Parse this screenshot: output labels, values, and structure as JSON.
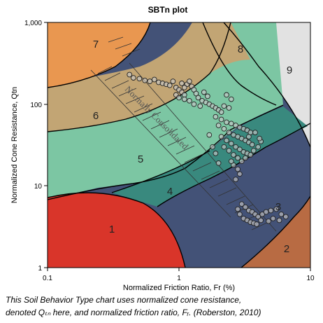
{
  "chart_data": {
    "type": "scatter",
    "title": "SBTn plot",
    "xlabel": "Normalized Friction Ratio, Fr (%)",
    "ylabel": "Normalized Cone Resistance, Qtn",
    "x_scale": "log",
    "y_scale": "log",
    "xlim": [
      0.1,
      10
    ],
    "ylim": [
      1,
      1000
    ],
    "x_ticks": [
      "0.1",
      "1",
      "10"
    ],
    "y_ticks": [
      "1,000",
      "100",
      "10",
      "1"
    ],
    "zone_labels": [
      "1",
      "2",
      "3",
      "4",
      "5",
      "6",
      "7",
      "8",
      "9"
    ],
    "zone_colors": {
      "1": "#d9352a",
      "2": "#b86b43",
      "3": "#435277",
      "4": "#39897e",
      "5": "#7cc6a3",
      "6": "#c2a574",
      "7": "#e99750",
      "8": "#939393",
      "9": "#e2e2e2"
    },
    "annotation": "Normally Consolidated",
    "series": [
      {
        "points": [
          [
            0.42,
            230
          ],
          [
            0.45,
            210
          ],
          [
            0.5,
            205
          ],
          [
            0.55,
            195
          ],
          [
            0.6,
            190
          ],
          [
            0.65,
            200
          ],
          [
            0.7,
            185
          ],
          [
            0.75,
            180
          ],
          [
            0.8,
            175
          ],
          [
            0.85,
            170
          ],
          [
            0.9,
            190
          ],
          [
            0.95,
            160
          ],
          [
            1.0,
            150
          ],
          [
            1.05,
            140
          ],
          [
            1.1,
            130
          ],
          [
            0.95,
            130
          ],
          [
            1.0,
            120
          ],
          [
            1.1,
            115
          ],
          [
            1.2,
            110
          ],
          [
            1.15,
            175
          ],
          [
            1.25,
            165
          ],
          [
            1.3,
            150
          ],
          [
            1.35,
            135
          ],
          [
            1.1,
            160
          ],
          [
            1.05,
            180
          ],
          [
            1.2,
            190
          ],
          [
            1.4,
            120
          ],
          [
            1.5,
            110
          ],
          [
            1.6,
            105
          ],
          [
            1.7,
            100
          ],
          [
            1.8,
            95
          ],
          [
            1.9,
            90
          ],
          [
            2.0,
            85
          ],
          [
            2.1,
            80
          ],
          [
            1.3,
            100
          ],
          [
            1.45,
            95
          ],
          [
            1.55,
            140
          ],
          [
            1.65,
            125
          ],
          [
            2.3,
            130
          ],
          [
            2.5,
            115
          ],
          [
            2.2,
            95
          ],
          [
            2.4,
            90
          ],
          [
            1.9,
            70
          ],
          [
            2.1,
            65
          ],
          [
            2.3,
            60
          ],
          [
            2.5,
            58
          ],
          [
            2.7,
            55
          ],
          [
            2.9,
            52
          ],
          [
            3.1,
            50
          ],
          [
            3.3,
            48
          ],
          [
            3.5,
            45
          ],
          [
            2.0,
            55
          ],
          [
            2.2,
            50
          ],
          [
            2.4,
            45
          ],
          [
            2.6,
            42
          ],
          [
            2.8,
            40
          ],
          [
            3.0,
            38
          ],
          [
            3.2,
            36
          ],
          [
            3.4,
            34
          ],
          [
            3.6,
            32
          ],
          [
            2.1,
            40
          ],
          [
            2.3,
            36
          ],
          [
            2.5,
            33
          ],
          [
            2.7,
            30
          ],
          [
            2.9,
            28
          ],
          [
            3.1,
            26
          ],
          [
            3.3,
            25
          ],
          [
            3.5,
            24
          ],
          [
            3.7,
            27
          ],
          [
            4.0,
            30
          ],
          [
            4.2,
            35
          ],
          [
            2.2,
            30
          ],
          [
            2.4,
            27
          ],
          [
            2.6,
            24
          ],
          [
            2.8,
            22
          ],
          [
            3.0,
            20
          ],
          [
            2.6,
            18
          ],
          [
            2.8,
            16
          ],
          [
            2.9,
            14
          ],
          [
            2.7,
            12
          ],
          [
            2.5,
            20
          ],
          [
            3.2,
            22
          ],
          [
            3.4,
            40
          ],
          [
            3.8,
            45
          ],
          [
            4.1,
            38
          ],
          [
            1.7,
            42
          ],
          [
            1.8,
            30
          ],
          [
            1.9,
            25
          ],
          [
            2.0,
            19
          ],
          [
            3.0,
            6.0
          ],
          [
            3.2,
            5.5
          ],
          [
            3.4,
            5.0
          ],
          [
            3.6,
            4.8
          ],
          [
            3.8,
            4.5
          ],
          [
            4.0,
            4.2
          ],
          [
            4.3,
            4.5
          ],
          [
            4.6,
            4.8
          ],
          [
            5.0,
            5.0
          ],
          [
            5.5,
            5.2
          ],
          [
            6.0,
            4.5
          ],
          [
            6.5,
            4.2
          ],
          [
            3.1,
            4.0
          ],
          [
            3.3,
            3.8
          ],
          [
            3.5,
            3.6
          ],
          [
            3.7,
            3.5
          ],
          [
            3.9,
            3.4
          ],
          [
            2.9,
            4.5
          ],
          [
            2.8,
            5.2
          ],
          [
            4.2,
            3.8
          ],
          [
            5.2,
            4.0
          ],
          [
            5.8,
            3.8
          ],
          [
            4.8,
            3.7
          ]
        ]
      }
    ]
  },
  "caption": {
    "line1": "This Soil Behavior Type chart uses normalized cone resistance,",
    "line2": "denoted Qₜₙ here, and normalized friction ratio, Fᵣ. (Roberston, 2010)"
  }
}
